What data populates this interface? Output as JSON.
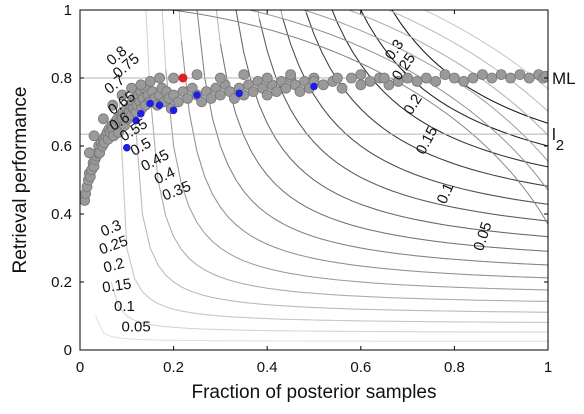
{
  "chart_data": {
    "type": "scatter",
    "title": "",
    "xlabel": "Fraction of posterior samples",
    "ylabel": "Retrieval performance",
    "xlim": [
      0,
      1
    ],
    "ylim": [
      0,
      1
    ],
    "x_ticks": [
      0,
      0.2,
      0.4,
      0.6,
      0.8,
      1
    ],
    "y_ticks": [
      0,
      0.2,
      0.4,
      0.6,
      0.8,
      1
    ],
    "x_tick_labels": [
      "0",
      "0.2",
      "0.4",
      "0.6",
      "0.8",
      "1"
    ],
    "y_tick_labels": [
      "0",
      "0.2",
      "0.4",
      "0.6",
      "0.8",
      "1"
    ],
    "grid": false,
    "reference_lines": [
      {
        "label": "ML",
        "y": 0.8,
        "color": "#b4b4b4"
      },
      {
        "label": "l",
        "subscript": "2",
        "y": 0.635,
        "color": "#b4b4b4"
      }
    ],
    "contours": {
      "levels": [
        0.05,
        0.1,
        0.15,
        0.2,
        0.25,
        0.3,
        0.35,
        0.4,
        0.45,
        0.5,
        0.55,
        0.6,
        0.65,
        0.7,
        0.75,
        0.8
      ],
      "level_labels": [
        "0.05",
        "0.1",
        "0.15",
        "0.2",
        "0.25",
        "0.3",
        "0.35",
        "0.4",
        "0.45",
        "0.5",
        "0.55",
        "0.6",
        "0.65",
        "0.7",
        "0.75",
        "0.8"
      ],
      "labels": [
        {
          "text": "0.05",
          "x": 0.12,
          "y": 0.055,
          "angle": 0
        },
        {
          "text": "0.1",
          "x": 0.095,
          "y": 0.115,
          "angle": 0
        },
        {
          "text": "0.15",
          "x": 0.08,
          "y": 0.175,
          "angle": -8
        },
        {
          "text": "0.2",
          "x": 0.075,
          "y": 0.235,
          "angle": -15
        },
        {
          "text": "0.25",
          "x": 0.075,
          "y": 0.295,
          "angle": -20
        },
        {
          "text": "0.3",
          "x": 0.07,
          "y": 0.345,
          "angle": -22
        },
        {
          "text": "0.35",
          "x": 0.21,
          "y": 0.455,
          "angle": -22
        },
        {
          "text": "0.4",
          "x": 0.185,
          "y": 0.5,
          "angle": -25
        },
        {
          "text": "0.45",
          "x": 0.165,
          "y": 0.545,
          "angle": -28
        },
        {
          "text": "0.5",
          "x": 0.135,
          "y": 0.585,
          "angle": -30
        },
        {
          "text": "0.55",
          "x": 0.12,
          "y": 0.635,
          "angle": -32
        },
        {
          "text": "0.6",
          "x": 0.09,
          "y": 0.66,
          "angle": -34
        },
        {
          "text": "0.65",
          "x": 0.095,
          "y": 0.715,
          "angle": -36
        },
        {
          "text": "0.7",
          "x": 0.08,
          "y": 0.77,
          "angle": -38
        },
        {
          "text": "0.75",
          "x": 0.105,
          "y": 0.825,
          "angle": -40
        },
        {
          "text": "0.8",
          "x": 0.085,
          "y": 0.855,
          "angle": -40
        },
        {
          "text": "0.3",
          "x": 0.68,
          "y": 0.875,
          "angle": -55
        },
        {
          "text": "0.25",
          "x": 0.7,
          "y": 0.825,
          "angle": -55
        },
        {
          "text": "0.2",
          "x": 0.72,
          "y": 0.715,
          "angle": -58
        },
        {
          "text": "0.15",
          "x": 0.75,
          "y": 0.61,
          "angle": -62
        },
        {
          "text": "0.1",
          "x": 0.79,
          "y": 0.455,
          "angle": -66
        },
        {
          "text": "0.05",
          "x": 0.87,
          "y": 0.33,
          "angle": -72
        }
      ]
    },
    "series": [
      {
        "marker": "gray",
        "color": "#8c8c8c",
        "description_points": [
          [
            0.01,
            0.44
          ],
          [
            0.012,
            0.46
          ],
          [
            0.015,
            0.48
          ],
          [
            0.018,
            0.5
          ],
          [
            0.02,
            0.52
          ],
          [
            0.022,
            0.51
          ],
          [
            0.025,
            0.53
          ],
          [
            0.028,
            0.55
          ],
          [
            0.03,
            0.54
          ],
          [
            0.032,
            0.56
          ],
          [
            0.035,
            0.57
          ],
          [
            0.038,
            0.58
          ],
          [
            0.04,
            0.6
          ],
          [
            0.042,
            0.58
          ],
          [
            0.045,
            0.61
          ],
          [
            0.048,
            0.6
          ],
          [
            0.05,
            0.62
          ],
          [
            0.052,
            0.61
          ],
          [
            0.055,
            0.63
          ],
          [
            0.058,
            0.64
          ],
          [
            0.06,
            0.62
          ],
          [
            0.062,
            0.65
          ],
          [
            0.065,
            0.64
          ],
          [
            0.068,
            0.66
          ],
          [
            0.07,
            0.65
          ],
          [
            0.072,
            0.63
          ],
          [
            0.075,
            0.67
          ],
          [
            0.078,
            0.66
          ],
          [
            0.08,
            0.68
          ],
          [
            0.082,
            0.64
          ],
          [
            0.085,
            0.67
          ],
          [
            0.088,
            0.69
          ],
          [
            0.09,
            0.68
          ],
          [
            0.092,
            0.7
          ],
          [
            0.095,
            0.66
          ],
          [
            0.098,
            0.69
          ],
          [
            0.1,
            0.71
          ],
          [
            0.103,
            0.68
          ],
          [
            0.105,
            0.7
          ],
          [
            0.108,
            0.72
          ],
          [
            0.11,
            0.69
          ],
          [
            0.112,
            0.73
          ],
          [
            0.115,
            0.71
          ],
          [
            0.118,
            0.74
          ],
          [
            0.12,
            0.7
          ],
          [
            0.122,
            0.72
          ],
          [
            0.125,
            0.75
          ],
          [
            0.128,
            0.73
          ],
          [
            0.13,
            0.76
          ],
          [
            0.132,
            0.71
          ],
          [
            0.135,
            0.74
          ],
          [
            0.138,
            0.77
          ],
          [
            0.14,
            0.72
          ],
          [
            0.145,
            0.75
          ],
          [
            0.15,
            0.73
          ],
          [
            0.155,
            0.76
          ],
          [
            0.16,
            0.74
          ],
          [
            0.165,
            0.72
          ],
          [
            0.17,
            0.75
          ],
          [
            0.175,
            0.77
          ],
          [
            0.18,
            0.73
          ],
          [
            0.185,
            0.76
          ],
          [
            0.19,
            0.74
          ],
          [
            0.195,
            0.71
          ],
          [
            0.2,
            0.75
          ],
          [
            0.21,
            0.73
          ],
          [
            0.22,
            0.76
          ],
          [
            0.23,
            0.74
          ],
          [
            0.24,
            0.77
          ],
          [
            0.25,
            0.75
          ],
          [
            0.26,
            0.73
          ],
          [
            0.27,
            0.76
          ],
          [
            0.28,
            0.74
          ],
          [
            0.29,
            0.77
          ],
          [
            0.3,
            0.75
          ],
          [
            0.31,
            0.78
          ],
          [
            0.32,
            0.76
          ],
          [
            0.33,
            0.74
          ],
          [
            0.34,
            0.77
          ],
          [
            0.35,
            0.75
          ],
          [
            0.36,
            0.78
          ],
          [
            0.37,
            0.76
          ],
          [
            0.38,
            0.79
          ],
          [
            0.39,
            0.77
          ],
          [
            0.4,
            0.75
          ],
          [
            0.41,
            0.78
          ],
          [
            0.42,
            0.76
          ],
          [
            0.43,
            0.79
          ],
          [
            0.44,
            0.77
          ],
          [
            0.45,
            0.8
          ],
          [
            0.46,
            0.78
          ],
          [
            0.47,
            0.76
          ],
          [
            0.48,
            0.79
          ],
          [
            0.49,
            0.77
          ],
          [
            0.5,
            0.8
          ],
          [
            0.52,
            0.78
          ],
          [
            0.54,
            0.79
          ],
          [
            0.56,
            0.77
          ],
          [
            0.58,
            0.8
          ],
          [
            0.6,
            0.78
          ],
          [
            0.62,
            0.79
          ],
          [
            0.64,
            0.8
          ],
          [
            0.66,
            0.78
          ],
          [
            0.68,
            0.79
          ],
          [
            0.7,
            0.8
          ],
          [
            0.72,
            0.79
          ],
          [
            0.74,
            0.8
          ],
          [
            0.76,
            0.79
          ],
          [
            0.78,
            0.81
          ],
          [
            0.8,
            0.8
          ],
          [
            0.82,
            0.79
          ],
          [
            0.84,
            0.8
          ],
          [
            0.86,
            0.81
          ],
          [
            0.88,
            0.8
          ],
          [
            0.9,
            0.81
          ],
          [
            0.92,
            0.8
          ],
          [
            0.94,
            0.81
          ],
          [
            0.96,
            0.8
          ],
          [
            0.98,
            0.81
          ],
          [
            0.99,
            0.8
          ],
          [
            0.995,
            0.805
          ],
          [
            0.2,
            0.8
          ],
          [
            0.25,
            0.81
          ],
          [
            0.3,
            0.8
          ],
          [
            0.35,
            0.81
          ],
          [
            0.4,
            0.8
          ],
          [
            0.45,
            0.81
          ],
          [
            0.5,
            0.79
          ],
          [
            0.55,
            0.8
          ],
          [
            0.6,
            0.81
          ],
          [
            0.65,
            0.8
          ],
          [
            0.15,
            0.79
          ],
          [
            0.17,
            0.8
          ],
          [
            0.13,
            0.78
          ],
          [
            0.11,
            0.77
          ],
          [
            0.09,
            0.75
          ],
          [
            0.07,
            0.72
          ],
          [
            0.05,
            0.68
          ],
          [
            0.03,
            0.63
          ],
          [
            0.02,
            0.58
          ]
        ]
      },
      {
        "marker": "blue",
        "color": "#1f1fe0",
        "points": [
          [
            0.1,
            0.595
          ],
          [
            0.12,
            0.675
          ],
          [
            0.13,
            0.695
          ],
          [
            0.15,
            0.725
          ],
          [
            0.17,
            0.72
          ],
          [
            0.2,
            0.705
          ],
          [
            0.25,
            0.75
          ],
          [
            0.34,
            0.755
          ],
          [
            0.5,
            0.775
          ]
        ]
      },
      {
        "marker": "red",
        "color": "#e02020",
        "points": [
          [
            0.22,
            0.8
          ]
        ]
      }
    ]
  }
}
